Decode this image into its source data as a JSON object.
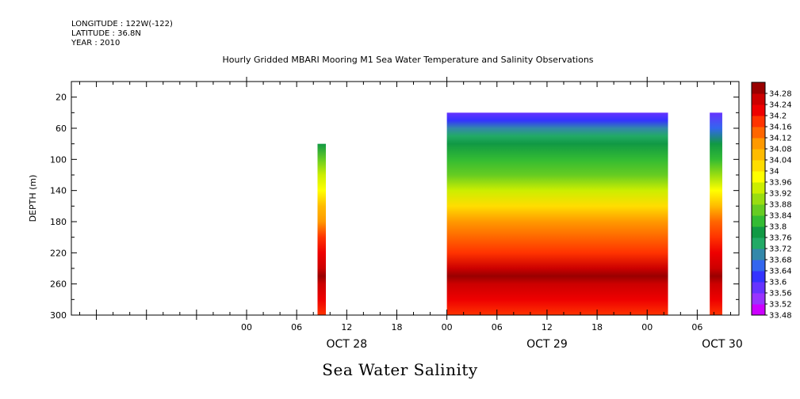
{
  "header": {
    "longitude": "LONGITUDE : 122W(-122)",
    "latitude": "LATITUDE : 36.8N",
    "year": "YEAR : 2010",
    "title": "Hourly Gridded MBARI Mooring M1 Sea Water Temperature and Salinity Observations"
  },
  "footer": {
    "caption": "Sea Water Salinity"
  },
  "chart_data": {
    "type": "heatmap",
    "title": "Hourly Gridded MBARI Mooring M1 Sea Water Temperature and Salinity Observations",
    "xlabel": "",
    "ylabel": "DEPTH (m)",
    "y_reversed": true,
    "ylim": [
      300,
      0
    ],
    "y_ticks": [
      20,
      60,
      100,
      140,
      180,
      220,
      260,
      300
    ],
    "x_time_range_hours": [
      -21,
      59
    ],
    "x_ticks": [
      {
        "hour": 0,
        "label": "00"
      },
      {
        "hour": 6,
        "label": "06"
      },
      {
        "hour": 12,
        "label": "12"
      },
      {
        "hour": 18,
        "label": "18"
      },
      {
        "hour": 24,
        "label": "00"
      },
      {
        "hour": 30,
        "label": "06"
      },
      {
        "hour": 36,
        "label": "12"
      },
      {
        "hour": 42,
        "label": "18"
      },
      {
        "hour": 48,
        "label": "00"
      },
      {
        "hour": 54,
        "label": "06"
      }
    ],
    "day_labels": [
      {
        "hour": 12,
        "label": "OCT 28"
      },
      {
        "hour": 36,
        "label": "OCT 29"
      },
      {
        "hour": 57,
        "label": "OCT 30"
      }
    ],
    "colorbar_levels": [
      33.48,
      33.52,
      33.56,
      33.6,
      33.64,
      33.68,
      33.72,
      33.76,
      33.8,
      33.84,
      33.88,
      33.92,
      33.96,
      34,
      34.04,
      34.08,
      34.12,
      34.16,
      34.2,
      34.24,
      34.28
    ],
    "colorbar_colors": [
      "#cc00ff",
      "#9933ff",
      "#6633ff",
      "#3333ff",
      "#3366ee",
      "#3388aa",
      "#22aa66",
      "#119944",
      "#33bb33",
      "#66cc22",
      "#99dd11",
      "#ccee00",
      "#ffff00",
      "#ffdd00",
      "#ffbb00",
      "#ff9900",
      "#ff6600",
      "#ff3300",
      "#ee0000",
      "#cc0000",
      "#990000"
    ],
    "blocks": [
      {
        "name": "Oct 28 segment",
        "hour_start": 8.5,
        "hour_end": 9.5,
        "depths": [
          80,
          100,
          120,
          140,
          160,
          180,
          200,
          220,
          240,
          250,
          260,
          280,
          300
        ],
        "values": [
          33.78,
          33.84,
          33.92,
          33.98,
          34.04,
          34.1,
          34.16,
          34.2,
          34.24,
          34.28,
          34.24,
          34.2,
          34.18
        ]
      },
      {
        "name": "Oct 29 segment",
        "hour_start": 24,
        "hour_end": 50.5,
        "depths": [
          40,
          50,
          60,
          70,
          80,
          100,
          120,
          140,
          160,
          180,
          200,
          220,
          240,
          250,
          260,
          280,
          300
        ],
        "values": [
          33.58,
          33.62,
          33.68,
          33.72,
          33.76,
          33.8,
          33.86,
          33.94,
          34.02,
          34.08,
          34.14,
          34.18,
          34.24,
          34.28,
          34.24,
          34.2,
          34.18
        ]
      },
      {
        "name": "Oct 30 segment",
        "hour_start": 55.5,
        "hour_end": 57,
        "depths": [
          40,
          60,
          80,
          100,
          120,
          140,
          160,
          180,
          200,
          220,
          240,
          250,
          260,
          280,
          300
        ],
        "values": [
          33.58,
          33.66,
          33.76,
          33.82,
          33.9,
          33.98,
          34.06,
          34.12,
          34.16,
          34.2,
          34.24,
          34.28,
          34.24,
          34.2,
          34.18
        ]
      }
    ],
    "grid": false,
    "legend": "colorbar-right"
  }
}
